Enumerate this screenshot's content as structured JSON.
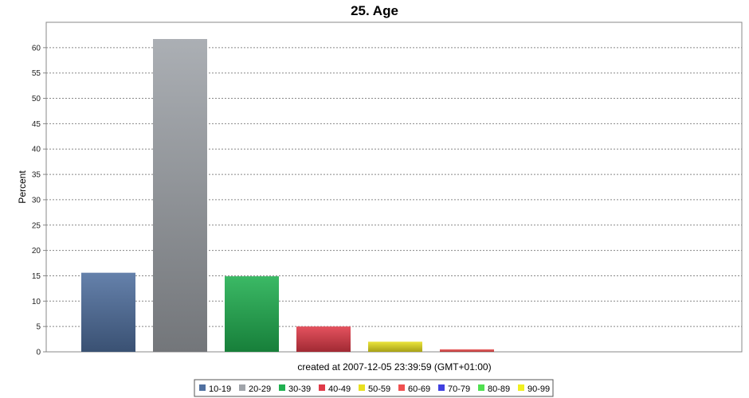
{
  "chart_data": {
    "type": "bar",
    "title": "25. Age",
    "xlabel": "created at 2007-12-05 23:39:59 (GMT+01:00)",
    "ylabel": "Percent",
    "ylim": [
      0,
      65
    ],
    "yticks": [
      0,
      5,
      10,
      15,
      20,
      25,
      30,
      35,
      40,
      45,
      50,
      55,
      60
    ],
    "grid": true,
    "legend_position": "bottom",
    "categories": [
      "10-19",
      "20-29",
      "30-39",
      "40-49",
      "50-59",
      "60-69",
      "70-79",
      "80-89",
      "90-99"
    ],
    "values": [
      15.6,
      61.7,
      14.9,
      5.0,
      2.0,
      0.5,
      0,
      0,
      0
    ],
    "colors": [
      "#5070a0",
      "#a0a4aa",
      "#20b050",
      "#e03a48",
      "#e8e020",
      "#f05050",
      "#4040e0",
      "#50e050",
      "#f0f020"
    ]
  }
}
